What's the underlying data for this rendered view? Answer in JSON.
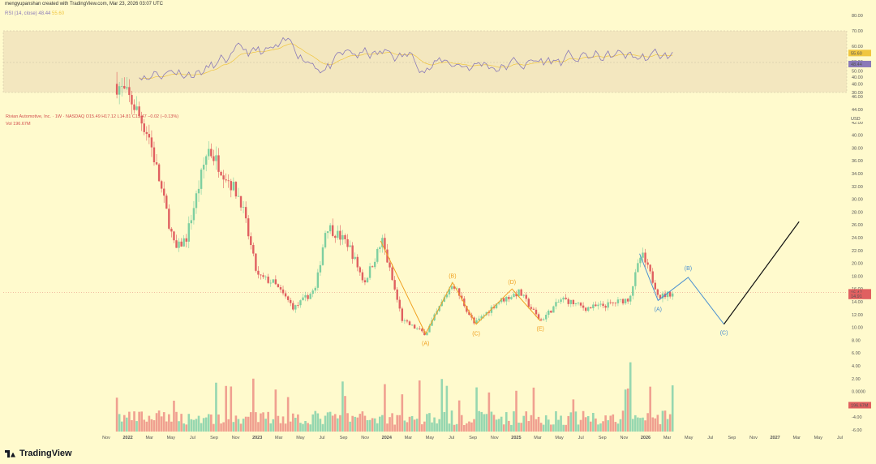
{
  "header": "mengyupanshan created with TradingView.com, Mar 23, 2026 03:07 UTC",
  "indicator": {
    "name": "RSI (14, close)",
    "value1": "48.44",
    "value2": "55.60"
  },
  "legend": {
    "line1": "Rivian Automotive, Inc. · 1W · NASDAQ O15.49 H17.12 L14.81 C15.47 −0.02 (−0.13%)",
    "line2": "Vol 196.67M"
  },
  "brand": "TradingView",
  "colors": {
    "up": "#7ecfa0",
    "down": "#e06060",
    "upVol": "#96d7b0",
    "downVol": "#f0a090",
    "rsi": "#8a7ab8",
    "rsiMa": "#f0c640",
    "waveOrange": "#f0a020",
    "waveBlue": "#4a8fd0",
    "bg": "#fffacd"
  },
  "chart_data": {
    "type": "candlestick",
    "title": "Rivian Automotive, Inc. · 1W · NASDAQ",
    "ylabel": "USD",
    "ylim": [
      -7,
      50
    ],
    "price_ticks": [
      "-6.00",
      "-4.00",
      "-2.00",
      "0.0000",
      "2.00",
      "4.00",
      "6.00",
      "8.00",
      "10.00",
      "12.00",
      "14.00",
      "16.00",
      "18.00",
      "20.00",
      "22.00",
      "24.00",
      "26.00",
      "28.00",
      "30.00",
      "32.00",
      "34.00",
      "36.00",
      "38.00",
      "40.00",
      "42.00",
      "44.00",
      "46.00",
      "48.00",
      "50.00"
    ],
    "rsi_ticks": [
      "30.00",
      "40.00",
      "50.00",
      "60.00",
      "70.00",
      "80.00"
    ],
    "x_ticks": [
      "Nov",
      "2022",
      "Mar",
      "May",
      "Jul",
      "Sep",
      "Nov",
      "2023",
      "Mar",
      "May",
      "Jul",
      "Sep",
      "Nov",
      "2024",
      "Mar",
      "May",
      "Jul",
      "Sep",
      "Nov",
      "2025",
      "Mar",
      "May",
      "Jul",
      "Sep",
      "Nov",
      "2026",
      "Mar",
      "May",
      "Jul",
      "Sep",
      "Nov",
      "2027",
      "Mar",
      "May",
      "Jul"
    ],
    "price_axis_labels": {
      "usd": "USD",
      "last": "15.47",
      "low": "14.91",
      "vol": "196.67M",
      "rsi": "48.44",
      "rsi_ma": "55.60"
    },
    "price_anchors": [
      {
        "date": "2021-12-01",
        "close": 48
      },
      {
        "date": "2022-01-15",
        "close": 45
      },
      {
        "date": "2022-03-01",
        "close": 40
      },
      {
        "date": "2022-05-15",
        "close": 22
      },
      {
        "date": "2022-06-15",
        "close": 24
      },
      {
        "date": "2022-08-15",
        "close": 38
      },
      {
        "date": "2022-10-01",
        "close": 34
      },
      {
        "date": "2022-11-15",
        "close": 30
      },
      {
        "date": "2023-01-01",
        "close": 18
      },
      {
        "date": "2023-02-15",
        "close": 17
      },
      {
        "date": "2023-04-15",
        "close": 13
      },
      {
        "date": "2023-06-15",
        "close": 16
      },
      {
        "date": "2023-07-15",
        "close": 26
      },
      {
        "date": "2023-09-15",
        "close": 23
      },
      {
        "date": "2023-10-30",
        "close": 17
      },
      {
        "date": "2023-12-20",
        "close": 23.5
      },
      {
        "date": "2024-02-15",
        "close": 11
      },
      {
        "date": "2024-04-20",
        "close": 9
      },
      {
        "date": "2024-07-05",
        "close": 17
      },
      {
        "date": "2024-09-05",
        "close": 10.5
      },
      {
        "date": "2024-11-10",
        "close": 14
      },
      {
        "date": "2025-01-10",
        "close": 15.5
      },
      {
        "date": "2025-03-10",
        "close": 11
      },
      {
        "date": "2025-05-10",
        "close": 14.5
      },
      {
        "date": "2025-07-15",
        "close": 13
      },
      {
        "date": "2025-09-15",
        "close": 13.5
      },
      {
        "date": "2025-11-15",
        "close": 14.5
      },
      {
        "date": "2025-12-20",
        "close": 21.5
      },
      {
        "date": "2026-02-10",
        "close": 14.8
      },
      {
        "date": "2026-03-20",
        "close": 15.47
      }
    ],
    "elliott_orange": {
      "points": [
        {
          "date": "2023-12-15",
          "y": 23.5
        },
        {
          "date": "2024-04-20",
          "y": 9
        },
        {
          "date": "2024-07-05",
          "y": 17
        },
        {
          "date": "2024-09-10",
          "y": 10.5
        },
        {
          "date": "2024-12-20",
          "y": 16
        },
        {
          "date": "2025-03-10",
          "y": 11
        }
      ],
      "labels": [
        "(A)",
        "(B)",
        "(C)",
        "(D)",
        "(E)"
      ]
    },
    "elliott_blue": {
      "points": [
        {
          "date": "2025-12-15",
          "y": 21.5
        },
        {
          "date": "2026-02-05",
          "y": 14.2
        },
        {
          "date": "2026-05-01",
          "y": 17.8
        },
        {
          "date": "2026-08-10",
          "y": 10.5
        }
      ],
      "labels": [
        "(A)",
        "(B)",
        "(C)"
      ]
    },
    "projection_black": [
      {
        "date": "2026-08-10",
        "y": 10.5
      },
      {
        "date": "2027-03-10",
        "y": 26.5
      }
    ]
  }
}
